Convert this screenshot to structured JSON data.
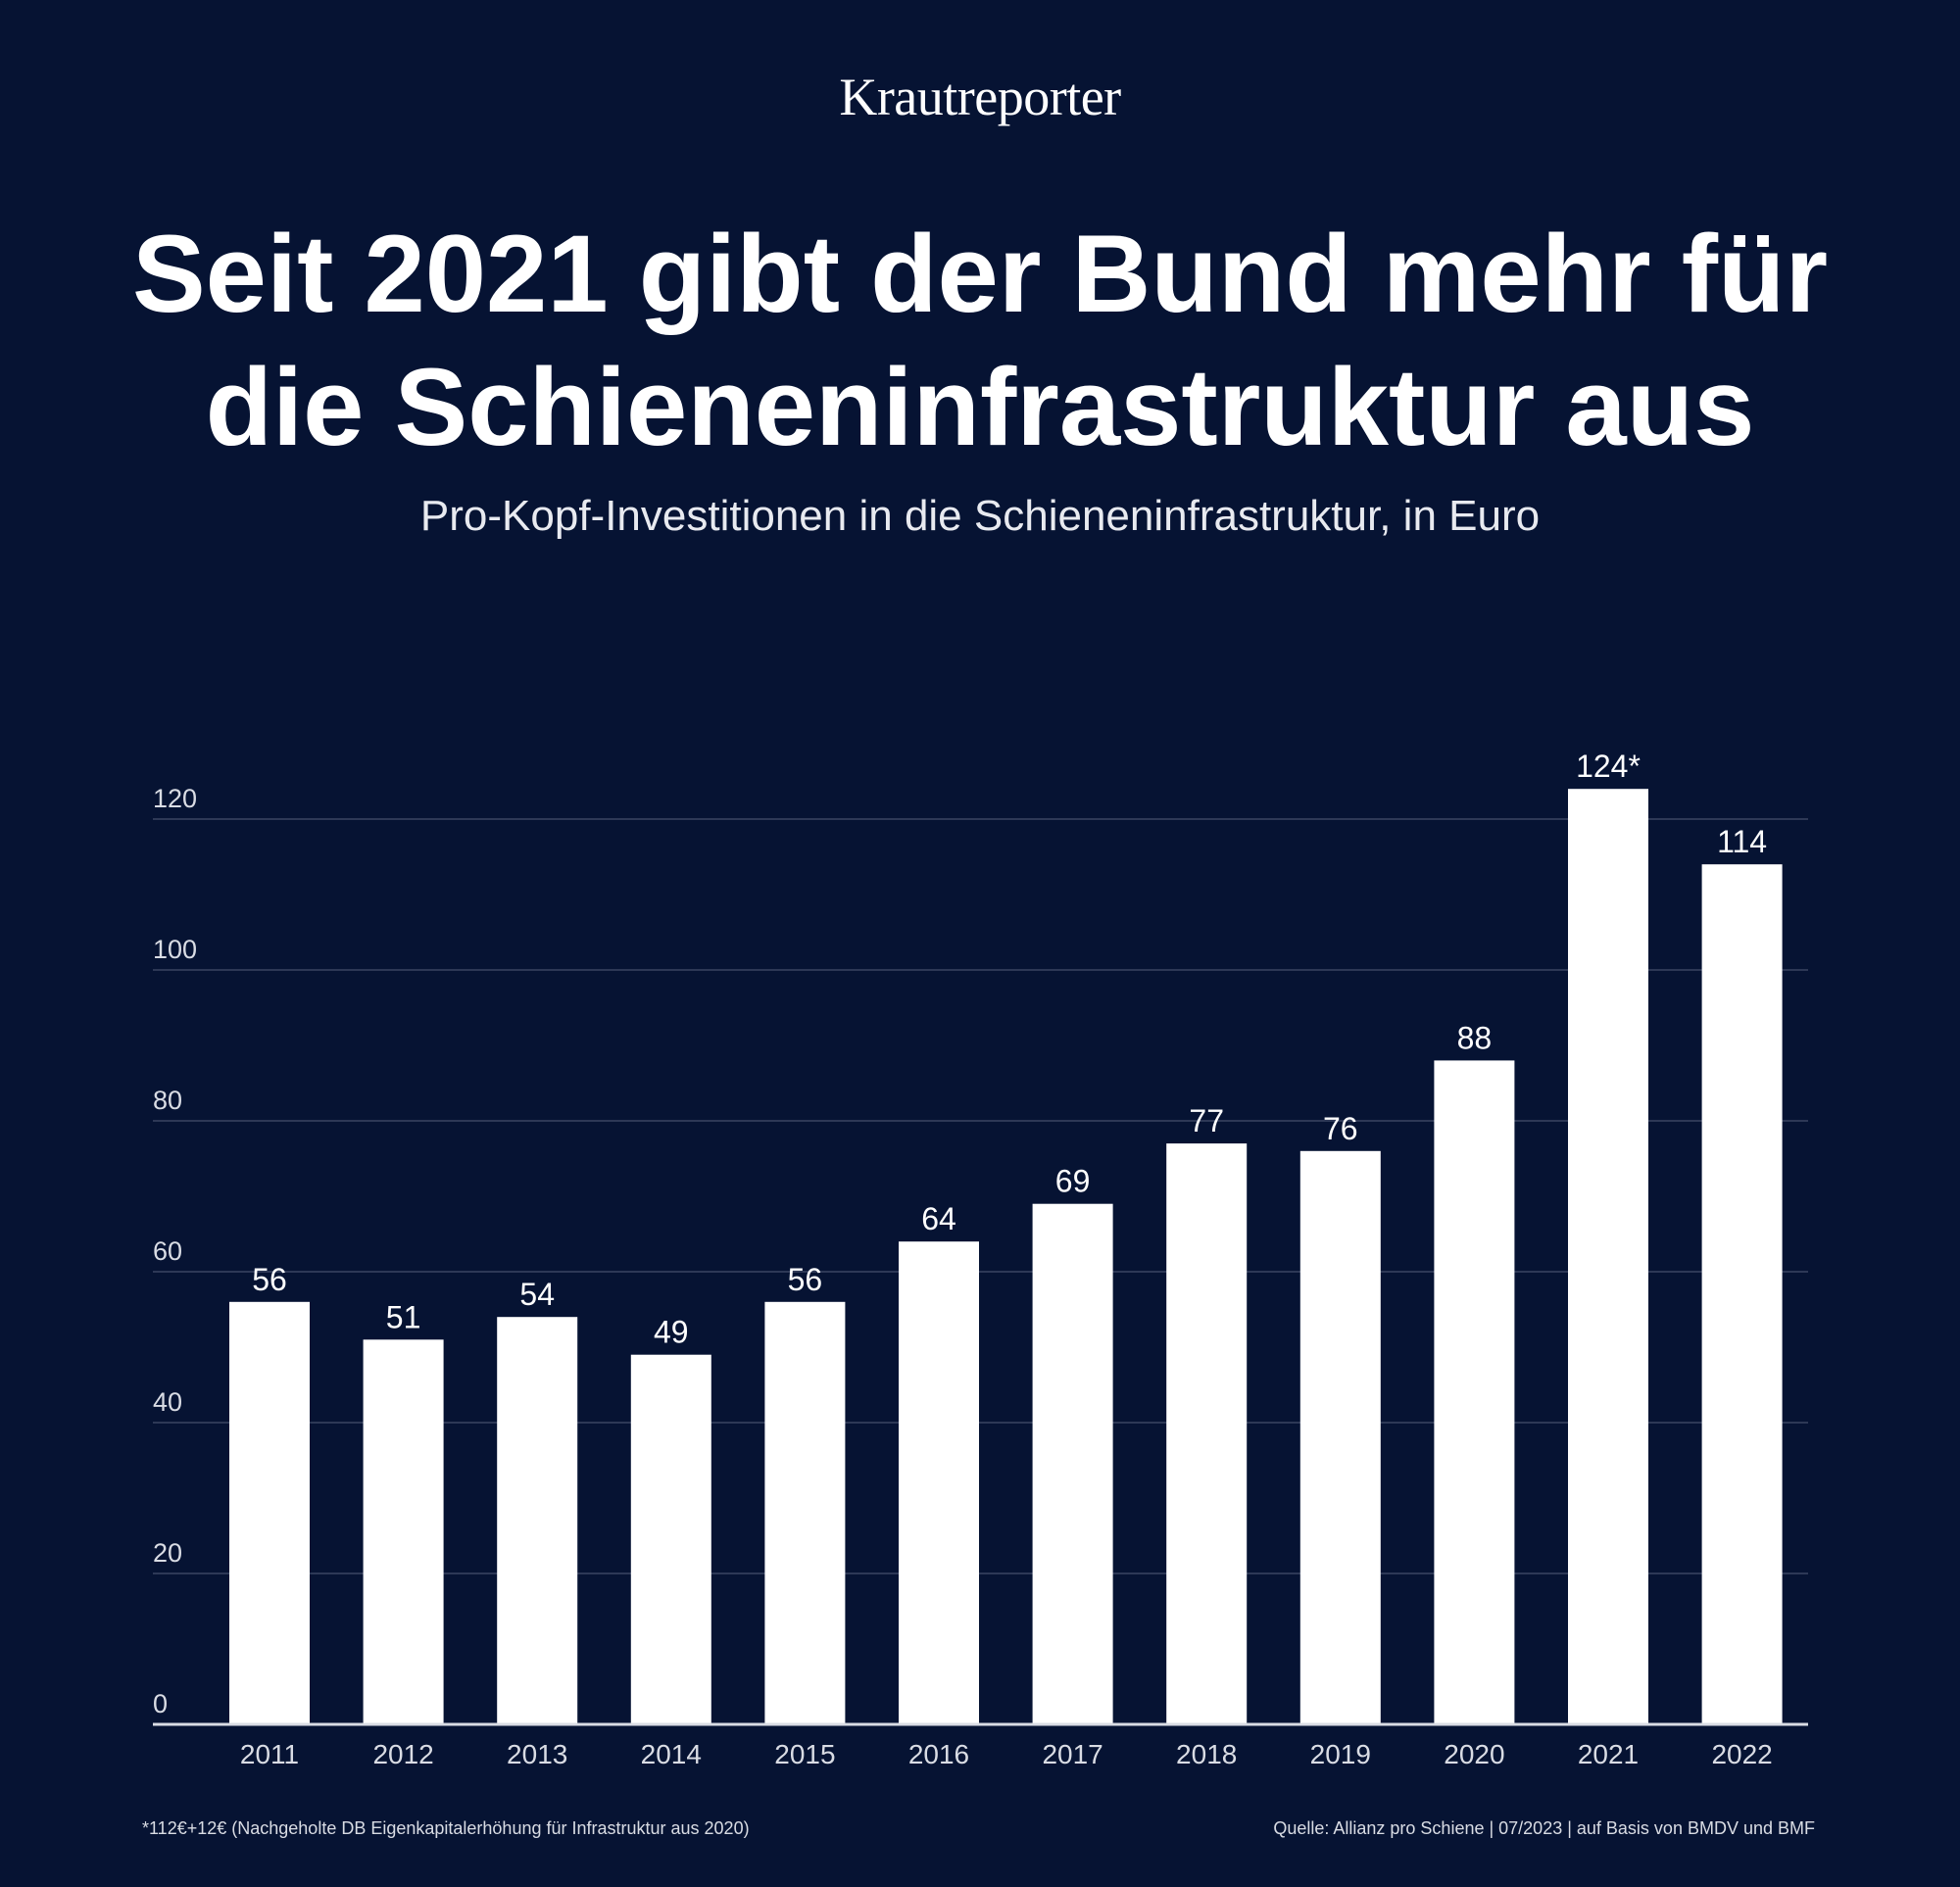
{
  "brand": "Krautreporter",
  "title_lines": [
    "Seit 2021 gibt der Bund mehr für",
    "die Schieneninfrastruktur aus"
  ],
  "subtitle": "Pro-Kopf-Investitionen in die Schieneninfrastruktur, in Euro",
  "footnote": "*112€+12€ (Nachgeholte DB Eigenkapitalerhöhung für Infrastruktur aus 2020)",
  "source": "Quelle: Allianz pro Schiene | 07/2023 | auf Basis von BMDV und BMF",
  "colors": {
    "background": "#061333",
    "bar": "#ffffff",
    "grid": "#3a4563",
    "axis": "#d9dce4"
  },
  "chart_data": {
    "type": "bar",
    "categories": [
      "2011",
      "2012",
      "2013",
      "2014",
      "2015",
      "2016",
      "2017",
      "2018",
      "2019",
      "2020",
      "2021",
      "2022"
    ],
    "values": [
      56,
      51,
      54,
      49,
      56,
      64,
      69,
      77,
      76,
      88,
      124,
      114
    ],
    "data_labels": [
      "56",
      "51",
      "54",
      "49",
      "56",
      "64",
      "69",
      "77",
      "76",
      "88",
      "124*",
      "114"
    ],
    "ylim": [
      0,
      120
    ],
    "yticks": [
      0,
      20,
      40,
      60,
      80,
      100,
      120
    ],
    "grid": true,
    "xlabel": "",
    "ylabel": ""
  }
}
